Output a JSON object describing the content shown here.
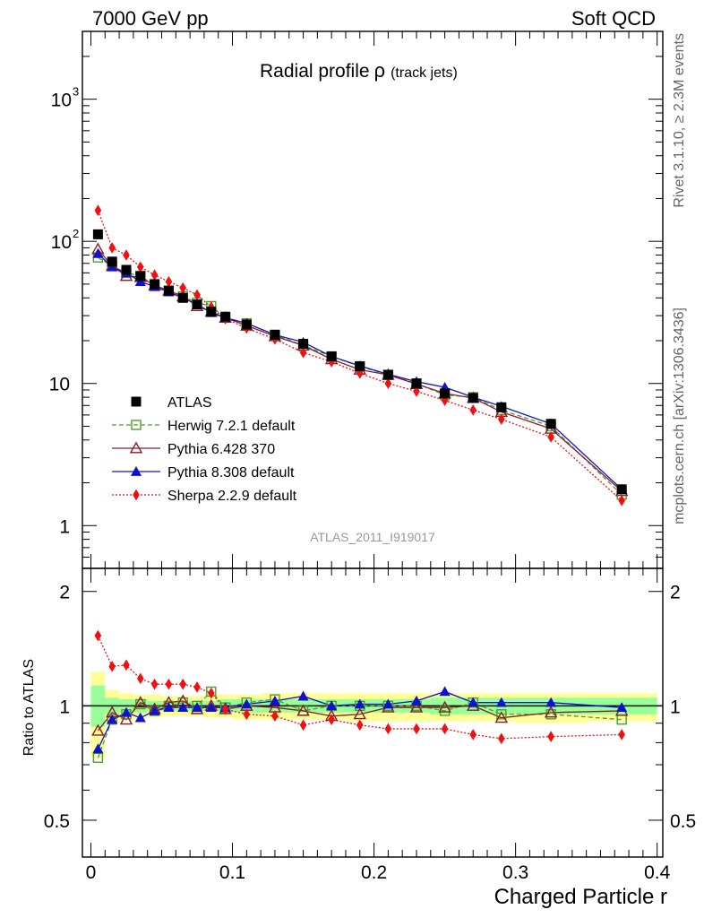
{
  "header": {
    "left": "7000 GeV pp",
    "right": "Soft QCD"
  },
  "side": {
    "rivet": "Rivet 3.1.10, ≥ 2.3M events",
    "mcplots": "mcplots.cern.ch [arXiv:1306.3436]"
  },
  "chart_data": {
    "type": "scatter",
    "title_main": "Radial profile",
    "title_symbol": "ρ",
    "title_suffix": "(track jets)",
    "watermark": "ATLAS_2011_I919017",
    "xlabel": "Charged Particle r",
    "ylabel_ratio": "Ratio to ATLAS",
    "xlim": [
      -0.006,
      0.404
    ],
    "ylim_main": [
      0.5,
      3000
    ],
    "ylim_ratio": [
      0.4,
      2.3
    ],
    "yscale_main": "log",
    "yscale_ratio": "log",
    "x_ticks": [
      {
        "value": 0,
        "label": "0"
      },
      {
        "value": 0.1,
        "label": "0.1"
      },
      {
        "value": 0.2,
        "label": "0.2"
      },
      {
        "value": 0.3,
        "label": "0.3"
      },
      {
        "value": 0.4,
        "label": "0.4"
      }
    ],
    "main_ticks": [
      {
        "value": 1,
        "base": "1",
        "exp": ""
      },
      {
        "value": 10,
        "base": "10",
        "exp": ""
      },
      {
        "value": 100,
        "base": "10",
        "exp": "2"
      },
      {
        "value": 1000,
        "base": "10",
        "exp": "3"
      }
    ],
    "ratio_ticks": [
      {
        "value": 0.5,
        "label": "0.5"
      },
      {
        "value": 1,
        "label": "1"
      },
      {
        "value": 2,
        "label": "2"
      }
    ],
    "x": [
      0.005,
      0.015,
      0.025,
      0.035,
      0.045,
      0.055,
      0.065,
      0.075,
      0.085,
      0.095,
      0.11,
      0.13,
      0.15,
      0.17,
      0.19,
      0.21,
      0.23,
      0.25,
      0.27,
      0.29,
      0.325,
      0.375
    ],
    "edges": [
      0,
      0.01,
      0.02,
      0.03,
      0.04,
      0.05,
      0.06,
      0.07,
      0.08,
      0.09,
      0.1,
      0.12,
      0.14,
      0.16,
      0.18,
      0.2,
      0.22,
      0.24,
      0.26,
      0.28,
      0.3,
      0.35,
      0.4
    ],
    "band_yellow": [
      [
        0.73,
        1.23
      ],
      [
        0.9,
        1.1
      ],
      [
        0.92,
        1.08
      ],
      [
        0.93,
        1.07
      ],
      [
        0.93,
        1.07
      ],
      [
        0.94,
        1.06
      ],
      [
        0.94,
        1.06
      ],
      [
        0.94,
        1.06
      ],
      [
        0.93,
        1.07
      ],
      [
        0.93,
        1.07
      ],
      [
        0.92,
        1.07
      ],
      [
        0.92,
        1.08
      ],
      [
        0.92,
        1.08
      ],
      [
        0.92,
        1.08
      ],
      [
        0.91,
        1.08
      ],
      [
        0.91,
        1.08
      ],
      [
        0.91,
        1.08
      ],
      [
        0.91,
        1.08
      ],
      [
        0.91,
        1.08
      ],
      [
        0.91,
        1.08
      ],
      [
        0.9,
        1.08
      ],
      [
        0.91,
        1.08
      ]
    ],
    "band_green": [
      [
        0.88,
        1.13
      ],
      [
        0.95,
        1.05
      ],
      [
        0.96,
        1.04
      ],
      [
        0.96,
        1.04
      ],
      [
        0.97,
        1.03
      ],
      [
        0.97,
        1.03
      ],
      [
        0.97,
        1.03
      ],
      [
        0.97,
        1.03
      ],
      [
        0.97,
        1.03
      ],
      [
        0.96,
        1.04
      ],
      [
        0.96,
        1.04
      ],
      [
        0.96,
        1.04
      ],
      [
        0.96,
        1.04
      ],
      [
        0.96,
        1.04
      ],
      [
        0.96,
        1.04
      ],
      [
        0.96,
        1.04
      ],
      [
        0.96,
        1.04
      ],
      [
        0.95,
        1.05
      ],
      [
        0.95,
        1.05
      ],
      [
        0.95,
        1.05
      ],
      [
        0.95,
        1.05
      ],
      [
        0.95,
        1.05
      ]
    ],
    "series": [
      {
        "name": "ATLAS",
        "color": "#000000",
        "marker": "square-filled",
        "line": "none",
        "values": [
          112,
          72,
          63,
          57,
          50,
          45,
          40,
          36,
          32,
          29.5,
          26,
          22,
          19,
          15.5,
          13.2,
          11.5,
          10,
          8.5,
          7.9,
          6.8,
          5.2,
          1.8
        ]
      },
      {
        "name": "Herwig 7.2.1 default",
        "color": "#4d9e2a",
        "marker": "square-open",
        "line": "dashed",
        "values": [
          77,
          67,
          60,
          57,
          49,
          45,
          41,
          37,
          35,
          29,
          26.5,
          22,
          18.5,
          15.5,
          13.2,
          11.5,
          10,
          8.3,
          8,
          6.5,
          5,
          1.65
        ],
        "ratio": [
          0.73,
          0.92,
          0.95,
          1.01,
          0.97,
          1.0,
          1.02,
          1.0,
          1.09,
          0.99,
          1.02,
          1.04,
          0.97,
          1.0,
          1.0,
          1.0,
          1.0,
          0.97,
          1.02,
          0.95,
          0.95,
          0.92
        ]
      },
      {
        "name": "Pythia 6.428 370",
        "color": "#8b1a2a",
        "marker": "triangle-open",
        "line": "solid",
        "values": [
          88,
          67,
          57,
          56,
          49,
          45,
          41,
          35,
          32,
          29,
          25.5,
          21.5,
          18.5,
          14.8,
          12.5,
          11.5,
          9.9,
          8.5,
          7.9,
          6.3,
          4.8,
          1.75
        ],
        "ratio": [
          0.86,
          0.96,
          0.92,
          1.02,
          0.98,
          1.02,
          1.03,
          0.98,
          1.0,
          0.98,
          1.0,
          0.99,
          0.97,
          0.94,
          0.95,
          0.99,
          0.99,
          0.99,
          1.0,
          0.93,
          0.96,
          0.97
        ]
      },
      {
        "name": "Pythia 8.308 default",
        "color": "#1111cc",
        "marker": "triangle-filled",
        "line": "solid",
        "values": [
          82,
          66,
          60,
          52,
          48,
          44,
          40,
          36,
          31.5,
          29,
          26.5,
          22,
          19.5,
          15.5,
          13.3,
          11.6,
          10.3,
          9.4,
          8,
          6.9,
          5.2,
          1.8
        ],
        "ratio": [
          0.77,
          0.92,
          0.96,
          0.93,
          0.97,
          0.99,
          0.99,
          0.99,
          0.99,
          0.99,
          1.01,
          1.03,
          1.06,
          1.0,
          1.01,
          1.01,
          1.03,
          1.09,
          1.02,
          1.02,
          1.02,
          0.99
        ]
      },
      {
        "name": "Sherpa 2.2.9 default",
        "color": "#ee1111",
        "marker": "diamond-filled",
        "line": "dotted",
        "values": [
          165,
          90,
          80,
          66,
          58,
          52,
          47,
          42,
          34.5,
          28.5,
          24.5,
          20.5,
          16.5,
          14.2,
          11.8,
          10,
          8.8,
          7.6,
          6.5,
          5.6,
          4.2,
          1.5
        ],
        "ratio": [
          1.53,
          1.27,
          1.28,
          1.18,
          1.14,
          1.14,
          1.14,
          1.12,
          1.08,
          0.98,
          0.95,
          0.94,
          0.89,
          0.92,
          0.89,
          0.87,
          0.87,
          0.87,
          0.84,
          0.82,
          0.83,
          0.84
        ]
      }
    ]
  }
}
